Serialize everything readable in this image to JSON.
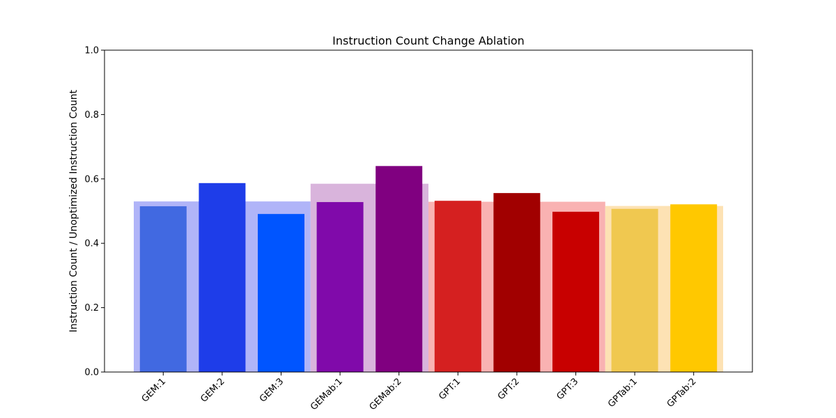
{
  "chart_data": {
    "type": "bar",
    "title": "Instruction Count Change Ablation",
    "xlabel": "",
    "ylabel": "Instruction Count / Unoptimized Instruction Count",
    "ylim": [
      0,
      1.0
    ],
    "yticks": [
      "0.0",
      "0.2",
      "0.4",
      "0.6",
      "0.8",
      "1.0"
    ],
    "grid": false,
    "categories": [
      "GEM:1",
      "GEM:2",
      "GEM:3",
      "GEMab:1",
      "GEMab:2",
      "GPT:1",
      "GPT:2",
      "GPT:3",
      "GPTab:1",
      "GPTab:2"
    ],
    "values": [
      0.515,
      0.587,
      0.491,
      0.528,
      0.64,
      0.532,
      0.556,
      0.498,
      0.507,
      0.521
    ],
    "colors": [
      "#4169e1",
      "#1e3de9",
      "#0055ff",
      "#800aaa",
      "#800080",
      "#d52020",
      "#a10000",
      "#c80000",
      "#f0c850",
      "#ffc800"
    ],
    "group_backgrounds": [
      {
        "first": 0,
        "last": 2,
        "value": 0.53,
        "color": "#b0b4f8"
      },
      {
        "first": 3,
        "last": 4,
        "value": 0.585,
        "color": "#d9b4dc"
      },
      {
        "first": 5,
        "last": 7,
        "value": 0.529,
        "color": "#f9b2b2"
      },
      {
        "first": 8,
        "last": 9,
        "value": 0.516,
        "color": "#fde2b4"
      }
    ]
  }
}
